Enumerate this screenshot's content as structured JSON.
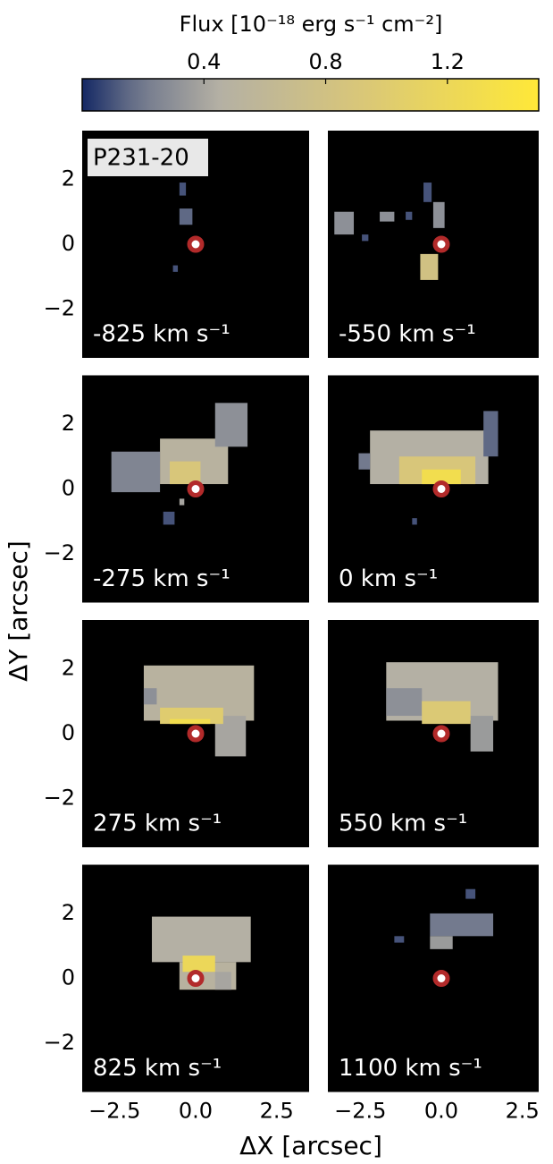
{
  "chart_data": {
    "type": "channel-maps",
    "name": "P231-20",
    "colorbar": {
      "title": "Flux [10⁻¹⁸ erg s⁻¹ cm⁻²]",
      "clim": [
        0,
        1.5
      ],
      "ticks": [
        0.4,
        0.8,
        1.2
      ]
    },
    "xlabel": "ΔX [arcsec]",
    "ylabel": "ΔY [arcsec]",
    "xlim": [
      -3.5,
      3.5
    ],
    "ylim": [
      -3.5,
      3.5
    ],
    "xticks": [
      {
        "value": -2.5,
        "label": "−2.5"
      },
      {
        "value": 0,
        "label": "0.0"
      },
      2.5
    ],
    "yticks": [
      {
        "value": -2,
        "label": "−2"
      },
      0,
      2
    ],
    "marker": {
      "x": 0,
      "y": 0,
      "color": "#b22a2a"
    },
    "panels": [
      {
        "label": "-825 km s⁻¹",
        "regions": [
          [
            -0.5,
            -0.1,
            0.6,
            1.1,
            0.15
          ],
          [
            -0.5,
            -0.3,
            1.5,
            1.9,
            0.1
          ],
          [
            -0.7,
            -0.55,
            -0.85,
            -0.65,
            0.1
          ]
        ]
      },
      {
        "label": "-550 km s⁻¹",
        "regions": [
          [
            -3.3,
            -2.7,
            0.3,
            1.0,
            0.3
          ],
          [
            -1.9,
            -1.45,
            0.7,
            1.0,
            0.3
          ],
          [
            -1.1,
            -0.9,
            0.75,
            1.0,
            0.1
          ],
          [
            -0.55,
            -0.3,
            1.3,
            1.9,
            0.1
          ],
          [
            -0.25,
            0.1,
            0.5,
            1.3,
            0.3
          ],
          [
            -0.65,
            -0.1,
            -1.1,
            -0.3,
            0.8
          ],
          [
            -2.45,
            -2.25,
            0.1,
            0.3,
            0.1
          ]
        ]
      },
      {
        "label": "-275 km s⁻¹",
        "regions": [
          [
            -2.6,
            -1.1,
            -0.1,
            1.15,
            0.25
          ],
          [
            -1.1,
            1.0,
            0.15,
            1.55,
            0.5
          ],
          [
            -0.8,
            0.15,
            0.15,
            0.85,
            0.9
          ],
          [
            0.6,
            1.6,
            1.3,
            2.65,
            0.3
          ],
          [
            -0.5,
            -0.35,
            -0.5,
            -0.3,
            0.4
          ],
          [
            -1.0,
            -0.65,
            -1.1,
            -0.7,
            0.1
          ]
        ]
      },
      {
        "label": "0 km s⁻¹",
        "regions": [
          [
            -2.2,
            1.45,
            0.15,
            1.8,
            0.45
          ],
          [
            -1.3,
            1.05,
            0.15,
            1.0,
            0.9
          ],
          [
            -0.6,
            0.6,
            0.15,
            0.6,
            1.3
          ],
          [
            1.3,
            1.75,
            1.0,
            2.4,
            0.15
          ],
          [
            -2.55,
            -2.2,
            0.6,
            1.1,
            0.2
          ],
          [
            -0.9,
            -0.75,
            -1.1,
            -0.9,
            0.1
          ]
        ]
      },
      {
        "label": "275 km s⁻¹",
        "regions": [
          [
            -1.6,
            1.8,
            0.4,
            2.1,
            0.5
          ],
          [
            0.6,
            1.55,
            -0.7,
            0.55,
            0.4
          ],
          [
            -1.6,
            -1.2,
            0.9,
            1.4,
            0.3
          ],
          [
            -1.1,
            0.85,
            0.3,
            0.8,
            1.0
          ],
          [
            -0.8,
            0.45,
            0.3,
            0.45,
            1.3
          ]
        ]
      },
      {
        "label": "550 km s⁻¹",
        "regions": [
          [
            -1.7,
            1.75,
            0.4,
            2.2,
            0.45
          ],
          [
            -1.7,
            -0.6,
            0.55,
            1.4,
            0.3
          ],
          [
            0.9,
            1.6,
            -0.55,
            0.55,
            0.35
          ],
          [
            -0.6,
            0.9,
            0.3,
            1.0,
            0.95
          ]
        ]
      },
      {
        "label": "825 km s⁻¹",
        "regions": [
          [
            -1.35,
            1.7,
            0.5,
            1.9,
            0.45
          ],
          [
            -0.5,
            1.25,
            -0.35,
            0.5,
            0.5
          ],
          [
            0.6,
            1.1,
            -0.35,
            0.2,
            0.4
          ],
          [
            -0.4,
            0.6,
            0.2,
            0.7,
            1.2
          ]
        ]
      },
      {
        "label": "1100 km s⁻¹",
        "regions": [
          [
            -0.35,
            1.6,
            1.3,
            2.0,
            0.2
          ],
          [
            -0.35,
            0.35,
            0.9,
            1.3,
            0.35
          ],
          [
            -1.45,
            -1.15,
            1.1,
            1.3,
            0.1
          ],
          [
            0.75,
            1.05,
            2.45,
            2.75,
            0.1
          ]
        ]
      }
    ]
  }
}
